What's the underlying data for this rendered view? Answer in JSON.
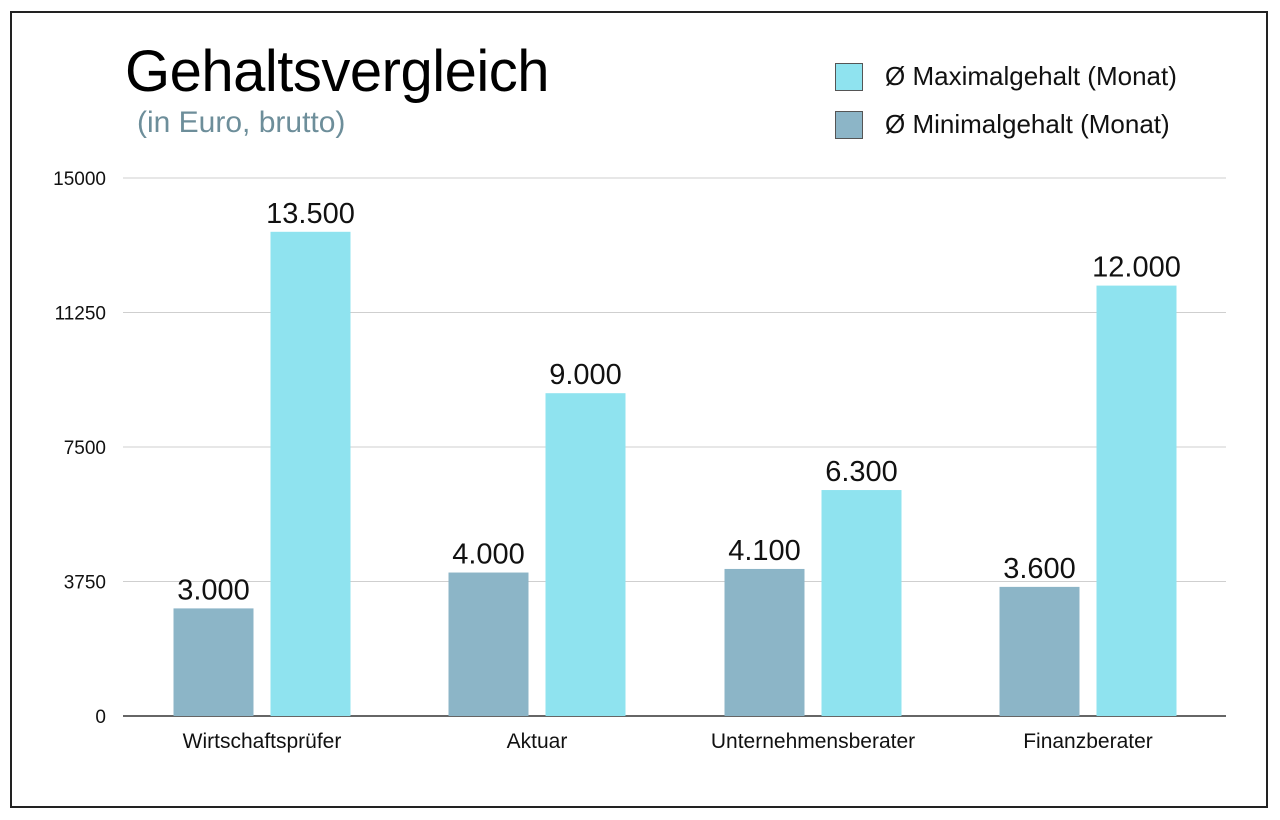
{
  "chart_data": {
    "type": "bar",
    "title": "Gehaltsvergleich",
    "subtitle": "(in Euro, brutto)",
    "categories": [
      "Wirtschaftsprüfer",
      "Aktuar",
      "Unternehmensberater",
      "Finanzberater"
    ],
    "series": [
      {
        "name": "Ø Minimalgehalt (Monat)",
        "color": "#8cb5c7",
        "values": [
          3000,
          4000,
          4100,
          3600
        ],
        "labels": [
          "3.000",
          "4.000",
          "4.100",
          "3.600"
        ]
      },
      {
        "name": "Ø Maximalgehalt (Monat)",
        "color": "#8fe3ef",
        "values": [
          13500,
          9000,
          6300,
          12000
        ],
        "labels": [
          "13.500",
          "9.000",
          "6.300",
          "12.000"
        ]
      }
    ],
    "yticks": [
      "0",
      "3750",
      "7500",
      "11250",
      "15000"
    ],
    "ylim": [
      0,
      15000
    ],
    "grid": true,
    "legend_position": "top-right",
    "legend_order": [
      1,
      0
    ]
  }
}
